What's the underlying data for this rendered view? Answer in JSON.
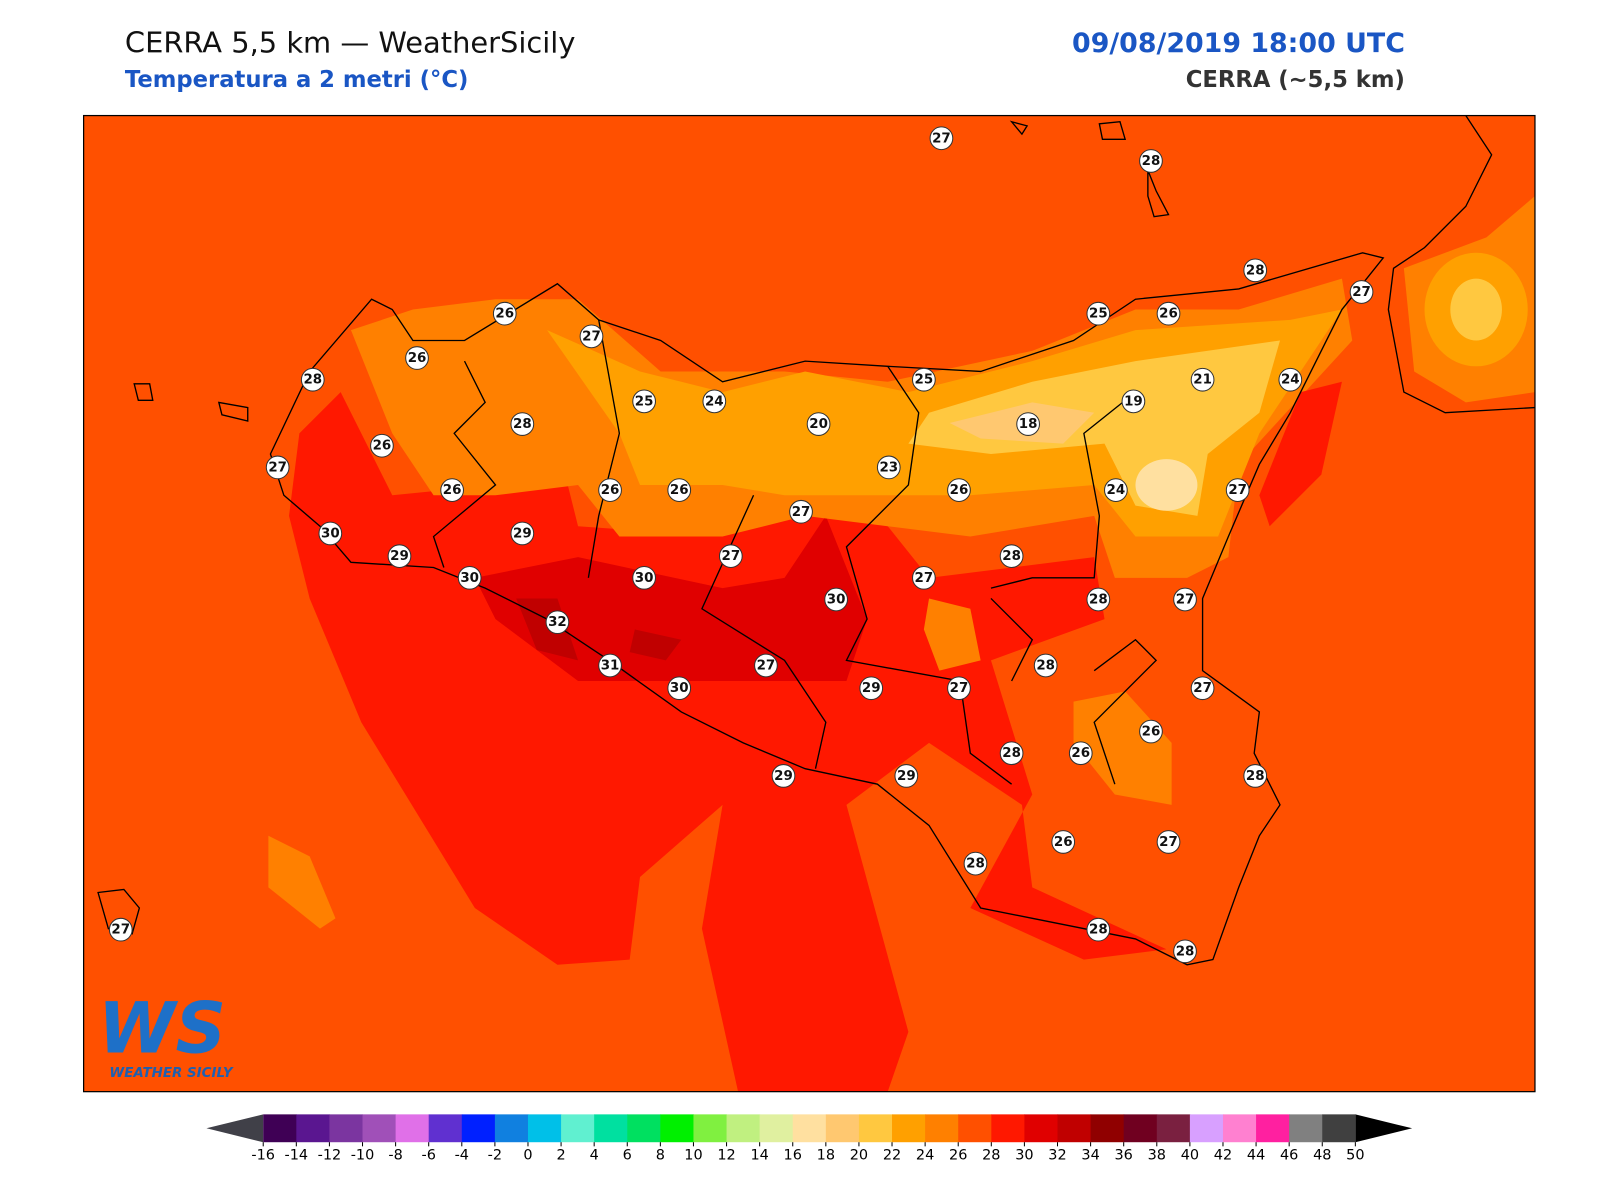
{
  "header": {
    "title": "CERRA 5,5 km — WeatherSicily",
    "subtitle": "Temperatura a 2 metri (°C)",
    "date": "09/08/2019 18:00 UTC",
    "model": "CERRA (~5,5 km)"
  },
  "stations": [
    27,
    28,
    28,
    27,
    26,
    27,
    25,
    26,
    26,
    28,
    25,
    21,
    24,
    25,
    24,
    19,
    28,
    20,
    18,
    26,
    27,
    23,
    26,
    26,
    26,
    26,
    24,
    27,
    27,
    30,
    29,
    29,
    27,
    28,
    30,
    30,
    27,
    30,
    28,
    27,
    32,
    31,
    27,
    28,
    30,
    29,
    27,
    27,
    26,
    28,
    26,
    29,
    29,
    28,
    28,
    26,
    27,
    28,
    28,
    27
  ],
  "colorbar": {
    "levels": [
      -16,
      -14,
      -12,
      -10,
      -8,
      -6,
      -4,
      -2,
      0,
      2,
      4,
      6,
      8,
      10,
      12,
      14,
      16,
      18,
      20,
      22,
      24,
      26,
      28,
      30,
      32,
      34,
      36,
      38,
      40,
      42,
      44,
      46,
      48,
      50
    ],
    "colors": [
      "#3f0055",
      "#5a1690",
      "#7b35a0",
      "#a050b8",
      "#e070e8",
      "#6030d0",
      "#0020ff",
      "#1080e0",
      "#00c0e8",
      "#60f0d0",
      "#00e0a0",
      "#00e060",
      "#00f000",
      "#80f040",
      "#c0f080",
      "#e0f0a0",
      "#ffe0a0",
      "#ffc870",
      "#ffc840",
      "#ffa000",
      "#ff8000",
      "#ff5000",
      "#ff1800",
      "#e00000",
      "#c00000",
      "#900000",
      "#700020",
      "#7a2040",
      "#d8a0ff",
      "#ff80d0",
      "#ff20a0",
      "#808080",
      "#404040"
    ],
    "under_color": "#404048",
    "over_color": "#000000"
  },
  "logo": {
    "mark": "WS",
    "text": "WEATHER SICILY"
  }
}
